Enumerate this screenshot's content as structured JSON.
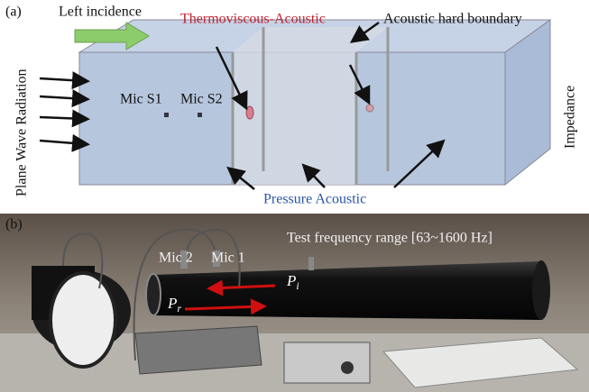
{
  "panel_a": {
    "label": "(a)",
    "incidence": "Left incidence",
    "thermo": "Thermoviscous-Acoustic",
    "hard": "Acoustic hard boundary",
    "radiation": "Plane Wave Radiation",
    "mic1": "Mic S1",
    "mic2": "Mic S2",
    "impedance": "Impedance",
    "pressure": "Pressure Acoustic"
  },
  "panel_b": {
    "label": "(b)",
    "range": "Test frequency range [63~1600 Hz]",
    "mic2": "Mic 2",
    "mic1": "Mic 1",
    "pi": {
      "base": "P",
      "sub": "i"
    },
    "pr": {
      "base": "P",
      "sub": "r"
    }
  }
}
